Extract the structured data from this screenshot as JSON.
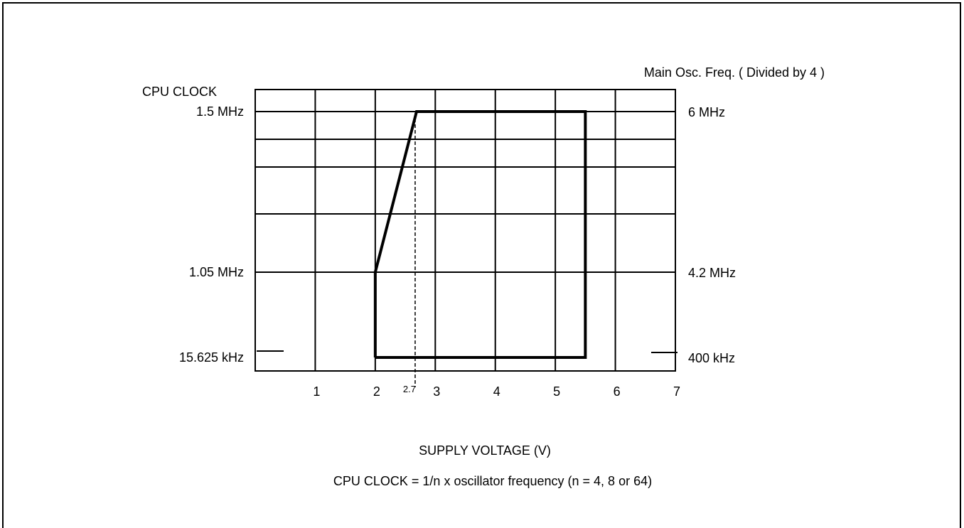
{
  "chart_data": {
    "type": "line",
    "title": "",
    "xlabel": "SUPPLY VOLTAGE (V)",
    "ylabel": "CPU CLOCK",
    "right_axis_label": "Main Osc. Freq. ( Divided by 4 )",
    "footnote": "CPU CLOCK = 1/n  x  oscillator frequency  (n =  4, 8 or 64)",
    "xlim": [
      0,
      7
    ],
    "x_ticks": [
      {
        "value": 1,
        "label": "1"
      },
      {
        "value": 2,
        "label": "2"
      },
      {
        "value": 3,
        "label": "3"
      },
      {
        "value": 4,
        "label": "4"
      },
      {
        "value": 5,
        "label": "5"
      },
      {
        "value": 6,
        "label": "6"
      },
      {
        "value": 7,
        "label": "7"
      }
    ],
    "x_marker": {
      "value": 2.7,
      "label": "2.7",
      "style": "dashed"
    },
    "y_levels": [
      {
        "key": "low",
        "left_label": "15.625 kHz",
        "right_label": "400 kHz"
      },
      {
        "key": "mid",
        "left_label": "1.05 MHz",
        "right_label": "4.2 MHz"
      },
      {
        "key": "high",
        "left_label": "1.5 MHz",
        "right_label": "6 MHz"
      }
    ],
    "grid": true,
    "series": [
      {
        "points": [
          {
            "x": 2.0,
            "y": "low"
          },
          {
            "x": 2.0,
            "y": "mid"
          },
          {
            "x": 2.7,
            "y": "high"
          },
          {
            "x": 5.5,
            "y": "high"
          },
          {
            "x": 5.5,
            "y": "low"
          },
          {
            "x": 2.0,
            "y": "low"
          }
        ]
      }
    ]
  }
}
